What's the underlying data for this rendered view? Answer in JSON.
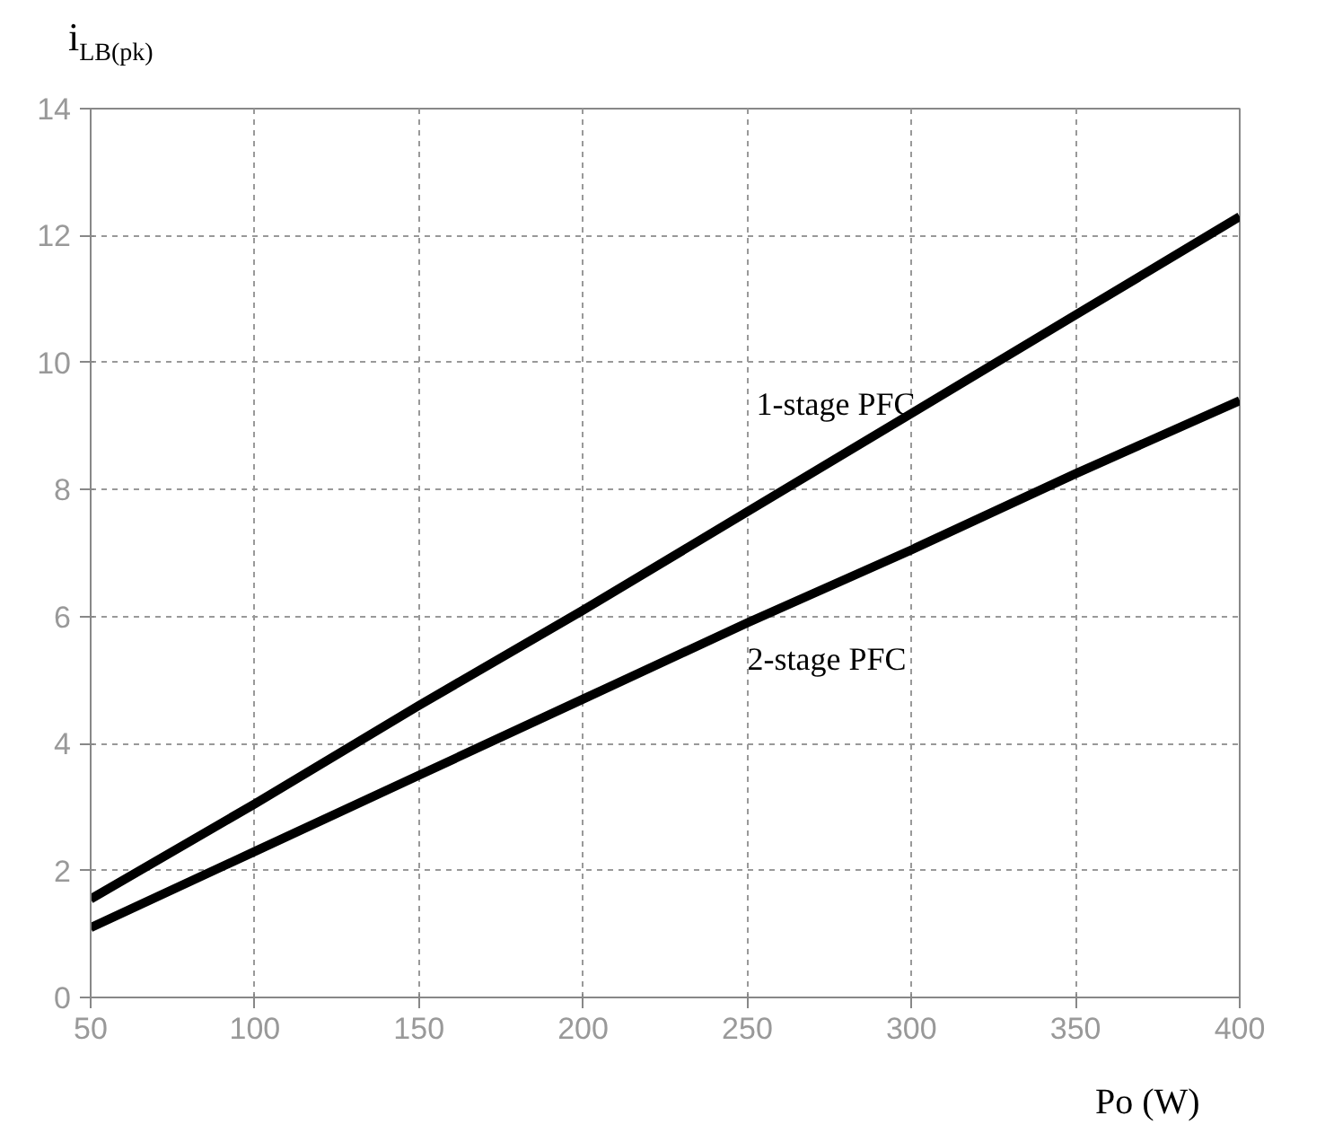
{
  "chart_data": {
    "type": "line",
    "ylabel": "i$_{LB(pk)}$",
    "xlabel": "Po (W)",
    "series": [
      {
        "name": "1-stage PFC",
        "color": "#000000",
        "x": [
          50,
          100,
          150,
          200,
          250,
          300,
          350,
          400
        ],
        "values": [
          1.55,
          3.05,
          4.6,
          6.1,
          7.65,
          9.2,
          10.75,
          12.3
        ]
      },
      {
        "name": "2-stage PFC",
        "color": "#000000",
        "x": [
          50,
          100,
          150,
          200,
          250,
          300,
          350,
          400
        ],
        "values": [
          1.1,
          2.3,
          3.5,
          4.7,
          5.9,
          7.05,
          8.25,
          9.4
        ]
      }
    ],
    "xlim": [
      50,
      400
    ],
    "xticks": [
      50,
      100,
      150,
      200,
      250,
      300,
      350,
      400
    ],
    "ylim": [
      0,
      14
    ],
    "yticks": [
      0,
      2,
      4,
      6,
      8,
      10,
      12,
      14
    ],
    "grid": true,
    "line_style": "solid",
    "marker": "none"
  }
}
